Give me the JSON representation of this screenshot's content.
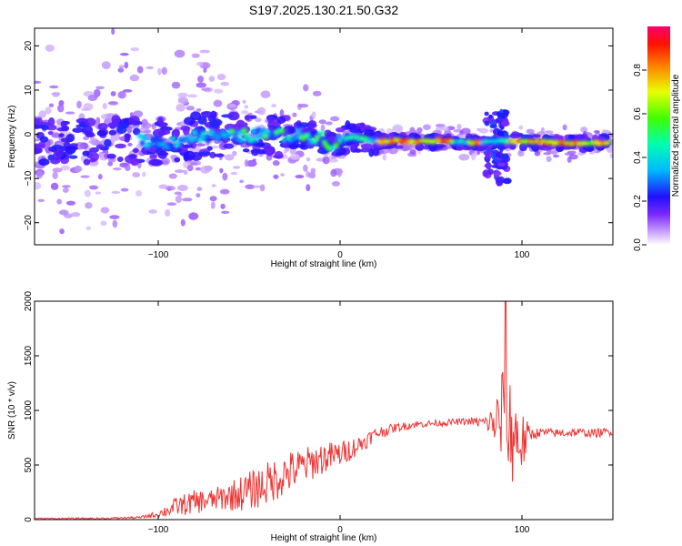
{
  "title": "S197.2025.130.21.50.G32",
  "colors": {
    "series_line": "#ee3333",
    "band_low": "#b070ff",
    "band_mid": "#4020ff",
    "band_high": "#ff3300"
  },
  "chart_data": [
    {
      "type": "heatmap",
      "xlabel": "Height of straight line (km)",
      "ylabel": "Frequency (Hz)",
      "xlim": [
        -168,
        150
      ],
      "ylim": [
        -25,
        24
      ],
      "xticks": [
        -100,
        0,
        100
      ],
      "yticks": [
        -20,
        -10,
        0,
        10,
        20
      ],
      "grid": false,
      "colorbar": {
        "label": "Normalized spectral amplitude",
        "range": [
          0,
          1
        ],
        "ticks": [
          "0.0",
          "0.2",
          "0.4",
          "0.6",
          "0.8"
        ],
        "tick_values": [
          0,
          0.2,
          0.4,
          0.6,
          0.8
        ]
      },
      "ridge": [
        {
          "x": -105,
          "f": -1.5
        },
        {
          "x": -95,
          "f": -2
        },
        {
          "x": -80,
          "f": -0.5
        },
        {
          "x": -60,
          "f": -0.5
        },
        {
          "x": -40,
          "f": 0
        },
        {
          "x": -25,
          "f": -0.5
        },
        {
          "x": -10,
          "f": -0.5
        },
        {
          "x": -5,
          "f": -2.5
        },
        {
          "x": 5,
          "f": -0.5
        },
        {
          "x": 20,
          "f": -1.5
        },
        {
          "x": 40,
          "f": -1.5
        },
        {
          "x": 60,
          "f": -1.5
        },
        {
          "x": 75,
          "f": -2
        },
        {
          "x": 90,
          "f": -1.5
        },
        {
          "x": 100,
          "f": -1.5
        },
        {
          "x": 120,
          "f": -2
        },
        {
          "x": 148,
          "f": -2
        }
      ]
    },
    {
      "type": "line",
      "xlabel": "Height of straight line (km)",
      "ylabel": "SNR (10 * v/v)",
      "xlim": [
        -168,
        150
      ],
      "ylim": [
        0,
        2000
      ],
      "xticks": [
        -100,
        0,
        100
      ],
      "yticks": [
        0,
        500,
        1000,
        1500,
        2000
      ],
      "grid": false,
      "series": [
        {
          "x": [
            -168,
            -130,
            -110,
            -100,
            -90,
            -80,
            -70,
            -60,
            -50,
            -40,
            -30,
            -20,
            -10,
            0,
            10,
            20,
            30,
            40,
            50,
            60,
            70,
            80,
            85,
            90,
            95,
            100,
            105,
            110,
            120,
            130,
            140,
            150
          ],
          "y": [
            10,
            10,
            20,
            50,
            120,
            160,
            180,
            220,
            260,
            330,
            420,
            490,
            560,
            600,
            680,
            790,
            840,
            870,
            880,
            890,
            900,
            890,
            880,
            900,
            800,
            700,
            780,
            800,
            790,
            800,
            790,
            810
          ],
          "noise_amplitude": [
            5,
            8,
            10,
            30,
            90,
            110,
            100,
            140,
            180,
            200,
            200,
            170,
            150,
            120,
            90,
            60,
            40,
            35,
            30,
            30,
            30,
            60,
            200,
            600,
            500,
            300,
            60,
            40,
            40,
            40,
            40,
            40
          ],
          "peak_value": 2000,
          "peak_x": 91
        }
      ]
    }
  ]
}
